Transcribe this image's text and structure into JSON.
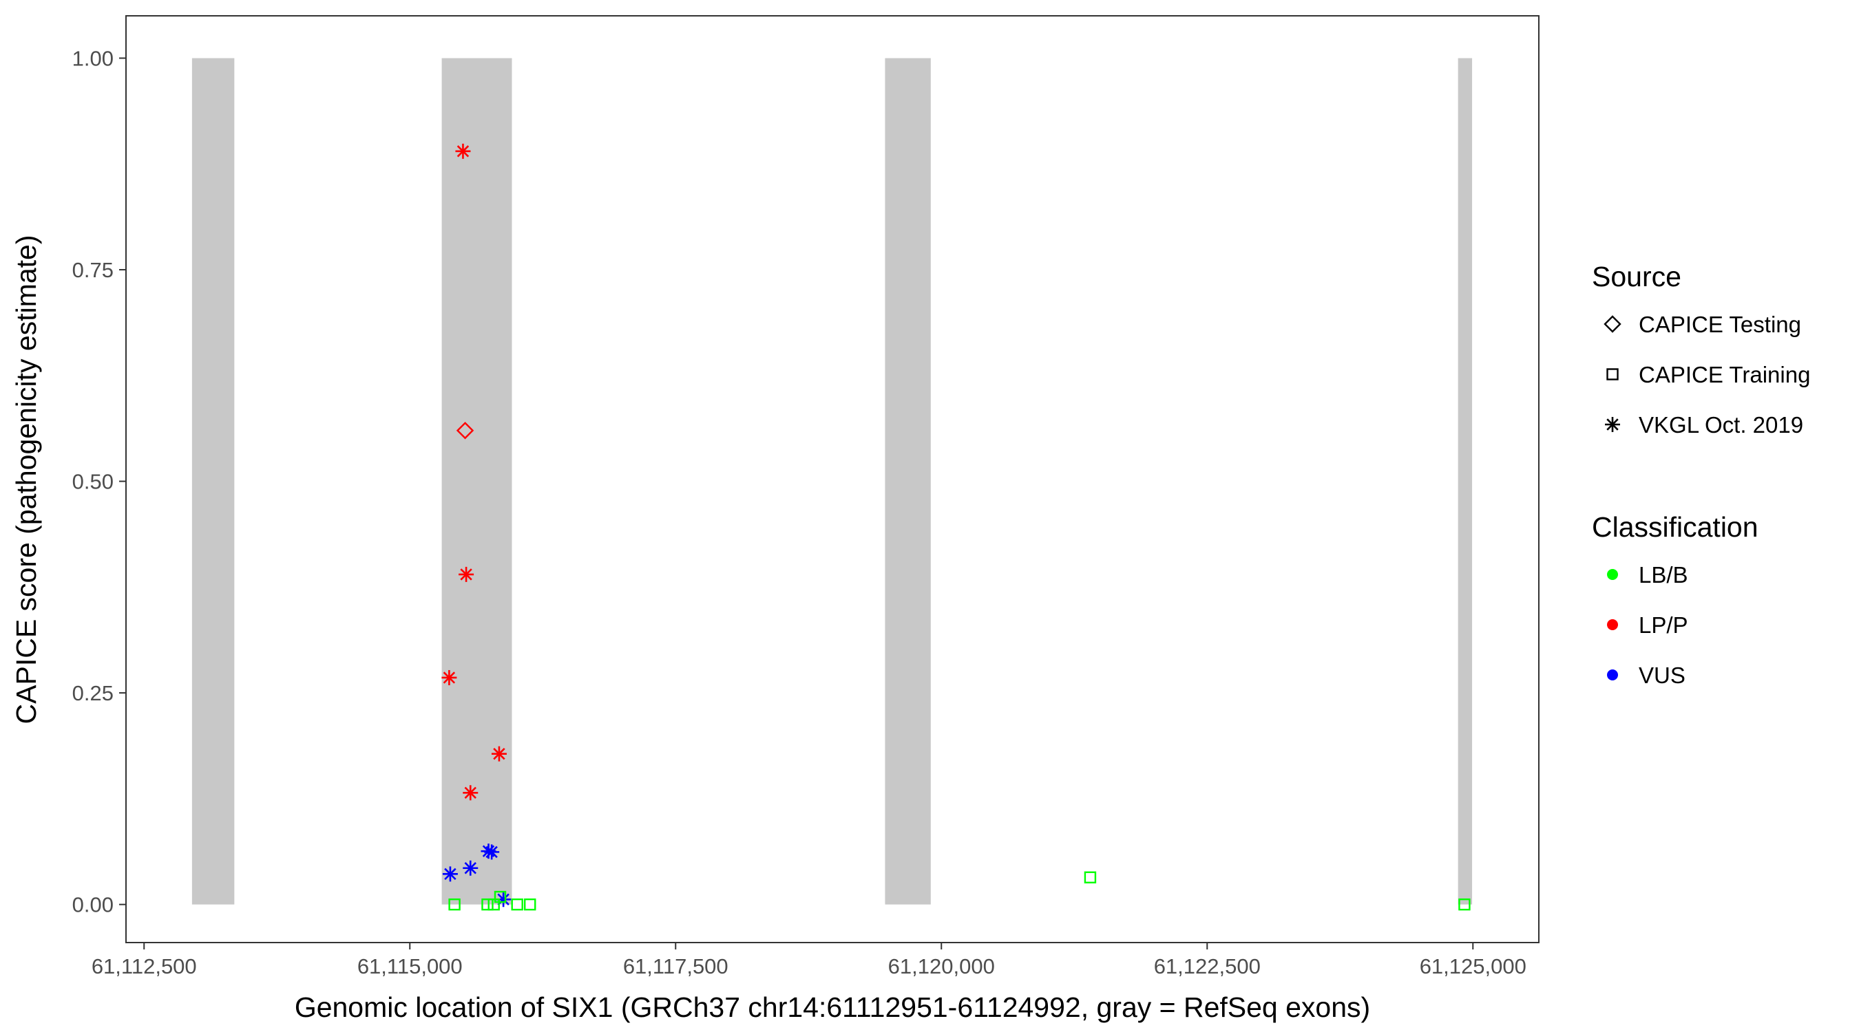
{
  "chart_data": {
    "type": "scatter",
    "xlabel": "Genomic location of SIX1 (GRCh37 chr14:61112951-61124992, gray = RefSeq exons)",
    "ylabel": "CAPICE score (pathogenicity estimate)",
    "xlim": [
      61112330,
      61125620
    ],
    "ylim": [
      -0.045,
      1.05
    ],
    "x_ticks": [
      {
        "value": 61112500,
        "label": "61,112,500"
      },
      {
        "value": 61115000,
        "label": "61,115,000"
      },
      {
        "value": 61117500,
        "label": "61,117,500"
      },
      {
        "value": 61120000,
        "label": "61,120,000"
      },
      {
        "value": 61122500,
        "label": "61,122,500"
      },
      {
        "value": 61125000,
        "label": "61,125,000"
      }
    ],
    "y_ticks": [
      {
        "value": 0.0,
        "label": "0.00"
      },
      {
        "value": 0.25,
        "label": "0.25"
      },
      {
        "value": 0.5,
        "label": "0.50"
      },
      {
        "value": 0.75,
        "label": "0.75"
      },
      {
        "value": 1.0,
        "label": "1.00"
      }
    ],
    "grid": false,
    "exon_color": "#c8c8c8",
    "exons": [
      {
        "start": 61112951,
        "end": 61113349
      },
      {
        "start": 61115300,
        "end": 61115960
      },
      {
        "start": 61119470,
        "end": 61119900
      },
      {
        "start": 61124860,
        "end": 61124992
      }
    ],
    "legend_position": "right",
    "legend": {
      "source_title": "Source",
      "source_items": [
        {
          "label": "CAPICE Testing",
          "shape": "diamond"
        },
        {
          "label": "CAPICE Training",
          "shape": "square"
        },
        {
          "label": "VKGL Oct. 2019",
          "shape": "asterisk"
        }
      ],
      "class_title": "Classification",
      "class_items": [
        {
          "label": "LB/B",
          "color": "#00ff00"
        },
        {
          "label": "LP/P",
          "color": "#ff0000"
        },
        {
          "label": "VUS",
          "color": "#0000ff"
        }
      ]
    },
    "points": [
      {
        "x": 61115500,
        "y": 0.89,
        "shape": "asterisk",
        "class": "LP/P"
      },
      {
        "x": 61115520,
        "y": 0.56,
        "shape": "diamond",
        "class": "LP/P"
      },
      {
        "x": 61115530,
        "y": 0.39,
        "shape": "asterisk",
        "class": "LP/P"
      },
      {
        "x": 61115370,
        "y": 0.268,
        "shape": "asterisk",
        "class": "LP/P"
      },
      {
        "x": 61115840,
        "y": 0.178,
        "shape": "asterisk",
        "class": "LP/P"
      },
      {
        "x": 61115570,
        "y": 0.132,
        "shape": "asterisk",
        "class": "LP/P"
      },
      {
        "x": 61115740,
        "y": 0.063,
        "shape": "asterisk",
        "class": "VUS"
      },
      {
        "x": 61115770,
        "y": 0.062,
        "shape": "asterisk",
        "class": "VUS"
      },
      {
        "x": 61115570,
        "y": 0.043,
        "shape": "asterisk",
        "class": "VUS"
      },
      {
        "x": 61115380,
        "y": 0.036,
        "shape": "asterisk",
        "class": "VUS"
      },
      {
        "x": 61115880,
        "y": 0.006,
        "shape": "asterisk",
        "class": "VUS"
      },
      {
        "x": 61115420,
        "y": 0.0,
        "shape": "square",
        "class": "LB/B"
      },
      {
        "x": 61115730,
        "y": 0.0,
        "shape": "square",
        "class": "LB/B"
      },
      {
        "x": 61115790,
        "y": 0.0,
        "shape": "square",
        "class": "LB/B"
      },
      {
        "x": 61115850,
        "y": 0.009,
        "shape": "square",
        "class": "LB/B"
      },
      {
        "x": 61116010,
        "y": 0.0,
        "shape": "square",
        "class": "LB/B"
      },
      {
        "x": 61116130,
        "y": 0.0,
        "shape": "square",
        "class": "LB/B"
      },
      {
        "x": 61121400,
        "y": 0.032,
        "shape": "square",
        "class": "LB/B"
      },
      {
        "x": 61124920,
        "y": 0.0,
        "shape": "square",
        "class": "LB/B"
      }
    ]
  }
}
